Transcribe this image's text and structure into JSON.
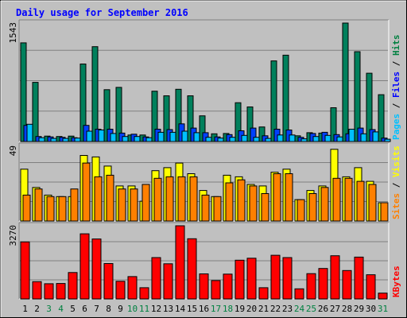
{
  "chart_data": {
    "type": "bar",
    "title": "Daily usage for September 2016",
    "categories": [
      "1",
      "2",
      "3",
      "4",
      "5",
      "6",
      "7",
      "8",
      "9",
      "10",
      "11",
      "12",
      "13",
      "14",
      "15",
      "16",
      "17",
      "18",
      "19",
      "20",
      "21",
      "22",
      "23",
      "24",
      "25",
      "26",
      "27",
      "28",
      "29",
      "30",
      "31"
    ],
    "weekend_days": [
      "3",
      "4",
      "10",
      "11",
      "17",
      "18",
      "24",
      "25",
      "31"
    ],
    "panels": [
      {
        "id": "hits",
        "ymax": 1543,
        "ymax_label": "1543",
        "axis_labels": [
          {
            "text": "Hits",
            "color": "#008040"
          },
          {
            "text": "Files",
            "color": "#0000ff"
          },
          {
            "text": "Pages",
            "color": "#00c0ff"
          }
        ],
        "series": [
          {
            "name": "Hits",
            "color": "#00805c",
            "values": [
              1285,
              770,
              70,
              65,
              70,
              1010,
              1235,
              675,
              705,
              85,
              85,
              655,
              595,
              680,
              595,
              335,
              100,
              105,
              505,
              450,
              190,
              1050,
              1125,
              75,
              115,
              110,
              440,
              1543,
              1170,
              890,
              610
            ]
          },
          {
            "name": "Files",
            "color": "#0040ff",
            "values": [
              210,
              65,
              60,
              55,
              50,
              210,
              160,
              160,
              110,
              95,
              60,
              160,
              155,
              230,
              175,
              115,
              60,
              90,
              140,
              175,
              75,
              160,
              150,
              55,
              105,
              120,
              90,
              100,
              175,
              155,
              45
            ]
          },
          {
            "name": "Pages",
            "color": "#00c0ff",
            "values": [
              225,
              50,
              40,
              40,
              45,
              135,
              150,
              105,
              65,
              65,
              50,
              120,
              120,
              135,
              115,
              55,
              45,
              55,
              80,
              55,
              40,
              85,
              85,
              35,
              65,
              80,
              60,
              160,
              100,
              125,
              30
            ]
          }
        ]
      },
      {
        "id": "visits",
        "ymax": 49,
        "ymax_label": "49",
        "axis_labels": [
          {
            "text": "Visits",
            "color": "#ffff00"
          },
          {
            "text": "Sites",
            "color": "#ff8000"
          }
        ],
        "series": [
          {
            "name": "Visits",
            "color": "#ffff00",
            "values": [
              34,
              22,
              17,
              16,
              16,
              43,
              42,
              36,
              23,
              23,
              13,
              33,
              35,
              38,
              31,
              20,
              16,
              30,
              29,
              24,
              23,
              32,
              34,
              14,
              20,
              23,
              47,
              29,
              35,
              26,
              12
            ]
          },
          {
            "name": "Sites",
            "color": "#ff8000",
            "values": [
              17,
              21,
              16,
              16,
              21,
              38,
              29,
              30,
              21,
              21,
              24,
              28,
              29,
              29,
              29,
              17,
              16,
              25,
              27,
              23,
              18,
              31,
              31,
              14,
              18,
              22,
              28,
              28,
              26,
              24,
              12
            ]
          }
        ]
      },
      {
        "id": "kbytes",
        "ymax": 3270,
        "ymax_label": "3270",
        "axis_labels": [
          {
            "text": "KBytes",
            "color": "#ff0000"
          }
        ],
        "series": [
          {
            "name": "KBytes",
            "color": "#ff0000",
            "values": [
              2550,
              770,
              680,
              690,
              1180,
              2910,
              2680,
              1580,
              790,
              1000,
              500,
              1850,
              1570,
              3270,
              2690,
              1120,
              820,
              1110,
              1730,
              1820,
              500,
              1950,
              1850,
              450,
              1130,
              1360,
              1930,
              1270,
              1870,
              1080,
              260
            ]
          }
        ]
      }
    ]
  }
}
